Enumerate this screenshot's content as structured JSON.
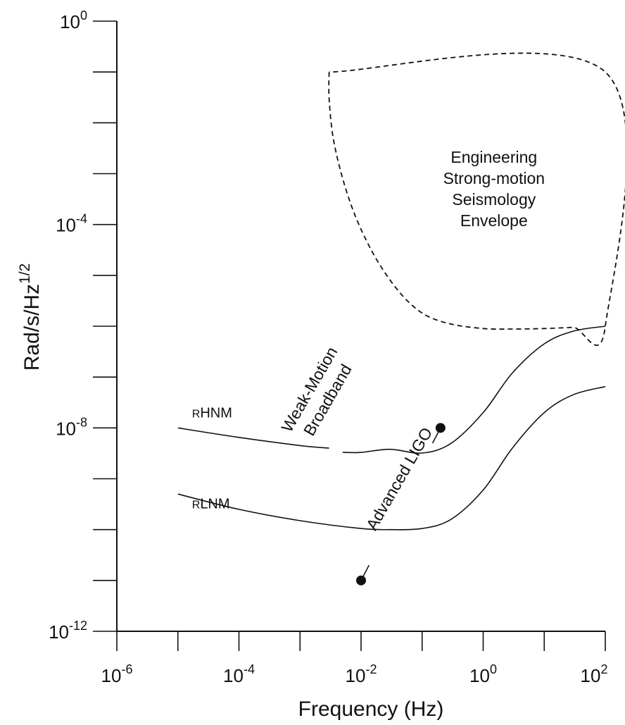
{
  "chart_data": {
    "type": "line",
    "title": "",
    "xlabel": "Frequency (Hz)",
    "ylabel": "Rad/s/Hz^1/2",
    "ylabel_base": "Rad/s/Hz",
    "ylabel_sup": "1/2",
    "x_scale": "log",
    "y_scale": "log",
    "xlim": [
      1e-06,
      100
    ],
    "ylim": [
      1e-12,
      1
    ],
    "grid": false,
    "x_ticks": [
      {
        "value": 1e-06,
        "base": "10",
        "exp": "-6"
      },
      {
        "value": 0.0001,
        "base": "10",
        "exp": "-4"
      },
      {
        "value": 0.01,
        "base": "10",
        "exp": "-2"
      },
      {
        "value": 1,
        "base": "10",
        "exp": "0"
      },
      {
        "value": 100,
        "base": "10",
        "exp": "2"
      }
    ],
    "y_ticks": [
      {
        "value": 1e-12,
        "base": "10",
        "exp": "-12"
      },
      {
        "value": 1e-08,
        "base": "10",
        "exp": "-8"
      },
      {
        "value": 0.0001,
        "base": "10",
        "exp": "-4"
      },
      {
        "value": 1,
        "base": "10",
        "exp": "0"
      }
    ],
    "x_minor_ticks": [
      1e-05,
      0.001,
      0.1,
      10
    ],
    "y_minor_ticks": [
      1e-11,
      1e-10,
      1e-09,
      1e-07,
      1e-06,
      1e-05,
      0.001,
      0.01,
      0.1
    ],
    "series": [
      {
        "name": "RHNM",
        "label_prefix": "R",
        "label_main": "HNM",
        "label_at": [
          1e-05,
          1.6e-08
        ],
        "style": "solid",
        "x": [
          1e-05,
          0.0001,
          0.001,
          0.003
        ],
        "y": [
          1e-08,
          6.5e-09,
          4.5e-09,
          4e-09
        ],
        "x2": [
          0.005,
          0.01,
          0.03,
          0.1,
          0.3,
          1,
          3,
          10,
          30,
          100
        ],
        "y2": [
          3.3e-09,
          3.3e-09,
          3.8e-09,
          3.2e-09,
          5e-09,
          2e-08,
          1.2e-07,
          4.5e-07,
          8e-07,
          1e-06
        ]
      },
      {
        "name": "RLNM",
        "label_prefix": "R",
        "label_main": "LNM",
        "label_at": [
          1e-05,
          2.6e-10
        ],
        "style": "solid",
        "x": [
          1e-05,
          0.0001,
          0.001,
          0.01,
          0.03,
          0.1,
          0.3,
          1,
          3,
          10,
          30,
          100
        ],
        "y": [
          5e-10,
          2.5e-10,
          1.5e-10,
          1.05e-10,
          1e-10,
          1.05e-10,
          1.6e-10,
          6e-10,
          4e-09,
          2e-08,
          4.5e-08,
          6.5e-08
        ]
      },
      {
        "name": "Engineering Strong-motion Seismology Envelope",
        "style": "dashed",
        "x": [
          0.003,
          0.003,
          0.0035,
          0.005,
          0.008,
          0.015,
          0.03,
          0.06,
          0.12,
          0.3,
          1,
          3,
          10,
          30,
          100,
          100,
          0.003
        ],
        "y": [
          0.1,
          0.03,
          0.005,
          0.0008,
          0.00015,
          3e-05,
          8e-06,
          3e-06,
          1.6e-06,
          1.1e-06,
          9e-07,
          8.8e-07,
          9e-07,
          9.5e-07,
          1e-06,
          0.1,
          0.1
        ]
      }
    ],
    "points": [
      {
        "name": "advanced-ligo-start",
        "x": 0.01,
        "y": 1e-11
      },
      {
        "name": "advanced-ligo-end",
        "x": 0.2,
        "y": 1e-08
      }
    ],
    "annotations": [
      {
        "lines": [
          "Engineering",
          "Strong-motion",
          "Seismology",
          "Envelope"
        ],
        "at": [
          1.5,
          0.0005
        ],
        "rotate": 0
      },
      {
        "lines": [
          "Weak-Motion",
          "Broadband"
        ],
        "at": [
          0.002,
          4.5e-08
        ],
        "rotate": -60
      },
      {
        "lines": [
          "Advanced LIGO"
        ],
        "at": [
          0.042,
          1e-09
        ],
        "rotate": -60
      }
    ]
  }
}
